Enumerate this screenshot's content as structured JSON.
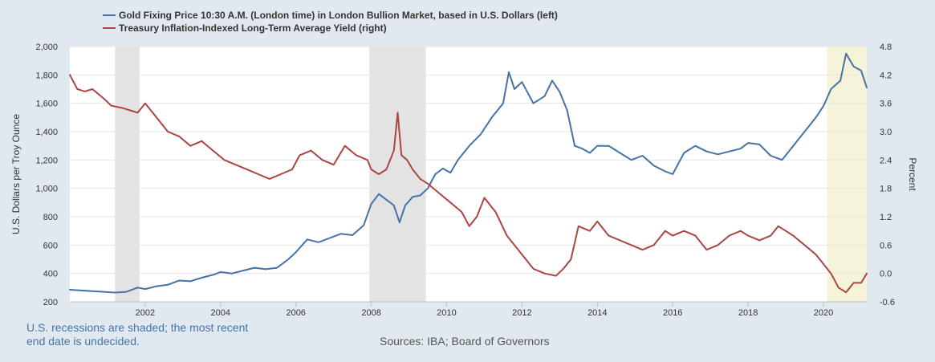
{
  "chart_data": {
    "type": "line",
    "series": [
      {
        "name": "Gold Fixing Price 10:30 A.M. (London time) in London Bullion Market, based in U.S. Dollars (left)",
        "axis": "left",
        "color": "#4572a7",
        "x": [
          2000.0,
          2000.3,
          2000.6,
          2000.9,
          2001.2,
          2001.5,
          2001.8,
          2002.0,
          2002.3,
          2002.6,
          2002.9,
          2003.2,
          2003.5,
          2003.8,
          2004.0,
          2004.3,
          2004.6,
          2004.9,
          2005.2,
          2005.5,
          2005.8,
          2006.0,
          2006.3,
          2006.6,
          2006.9,
          2007.2,
          2007.5,
          2007.8,
          2008.0,
          2008.2,
          2008.4,
          2008.6,
          2008.75,
          2008.9,
          2009.1,
          2009.3,
          2009.5,
          2009.7,
          2009.9,
          2010.1,
          2010.3,
          2010.6,
          2010.9,
          2011.2,
          2011.5,
          2011.65,
          2011.8,
          2012.0,
          2012.3,
          2012.6,
          2012.8,
          2013.0,
          2013.2,
          2013.4,
          2013.6,
          2013.8,
          2014.0,
          2014.3,
          2014.6,
          2014.9,
          2015.2,
          2015.5,
          2015.8,
          2016.0,
          2016.3,
          2016.6,
          2016.9,
          2017.2,
          2017.5,
          2017.8,
          2018.0,
          2018.3,
          2018.6,
          2018.9,
          2019.2,
          2019.5,
          2019.8,
          2020.0,
          2020.2,
          2020.45,
          2020.6,
          2020.8,
          2021.0,
          2021.15
        ],
        "values": [
          285,
          280,
          275,
          270,
          265,
          270,
          300,
          290,
          310,
          320,
          350,
          345,
          370,
          390,
          410,
          400,
          420,
          440,
          430,
          440,
          500,
          550,
          640,
          620,
          650,
          680,
          670,
          740,
          890,
          960,
          920,
          880,
          760,
          880,
          940,
          950,
          1000,
          1100,
          1140,
          1110,
          1200,
          1300,
          1380,
          1500,
          1600,
          1820,
          1700,
          1750,
          1600,
          1650,
          1760,
          1680,
          1550,
          1300,
          1280,
          1250,
          1300,
          1300,
          1250,
          1200,
          1230,
          1160,
          1120,
          1100,
          1250,
          1300,
          1260,
          1240,
          1260,
          1280,
          1320,
          1310,
          1230,
          1200,
          1300,
          1400,
          1500,
          1580,
          1700,
          1760,
          1950,
          1860,
          1830,
          1710
        ]
      },
      {
        "name": "Treasury Inflation-Indexed Long-Term Average Yield (right)",
        "axis": "right",
        "color": "#aa4643",
        "x": [
          2000.0,
          2000.2,
          2000.4,
          2000.6,
          2000.9,
          2001.1,
          2001.4,
          2001.6,
          2001.8,
          2002.0,
          2002.3,
          2002.6,
          2002.9,
          2003.2,
          2003.5,
          2003.8,
          2004.1,
          2004.4,
          2004.7,
          2005.0,
          2005.3,
          2005.6,
          2005.9,
          2006.1,
          2006.4,
          2006.7,
          2007.0,
          2007.3,
          2007.6,
          2007.9,
          2008.0,
          2008.2,
          2008.4,
          2008.6,
          2008.7,
          2008.8,
          2008.95,
          2009.1,
          2009.3,
          2009.5,
          2009.8,
          2010.1,
          2010.4,
          2010.6,
          2010.8,
          2011.0,
          2011.3,
          2011.6,
          2011.9,
          2012.1,
          2012.3,
          2012.6,
          2012.9,
          2013.1,
          2013.3,
          2013.5,
          2013.8,
          2014.0,
          2014.3,
          2014.6,
          2014.9,
          2015.2,
          2015.5,
          2015.8,
          2016.0,
          2016.3,
          2016.6,
          2016.9,
          2017.2,
          2017.5,
          2017.8,
          2018.0,
          2018.3,
          2018.6,
          2018.8,
          2019.0,
          2019.2,
          2019.5,
          2019.8,
          2020.0,
          2020.2,
          2020.4,
          2020.6,
          2020.8,
          2021.0,
          2021.15
        ],
        "values": [
          4.2,
          3.9,
          3.85,
          3.9,
          3.7,
          3.55,
          3.5,
          3.45,
          3.4,
          3.6,
          3.3,
          3.0,
          2.9,
          2.7,
          2.8,
          2.6,
          2.4,
          2.3,
          2.2,
          2.1,
          2.0,
          2.1,
          2.2,
          2.5,
          2.6,
          2.4,
          2.3,
          2.7,
          2.5,
          2.4,
          2.2,
          2.1,
          2.2,
          2.6,
          3.4,
          2.5,
          2.4,
          2.2,
          2.0,
          1.9,
          1.7,
          1.5,
          1.3,
          1.0,
          1.2,
          1.6,
          1.3,
          0.8,
          0.5,
          0.3,
          0.1,
          0.0,
          -0.05,
          0.1,
          0.3,
          1.0,
          0.9,
          1.1,
          0.8,
          0.7,
          0.6,
          0.5,
          0.6,
          0.9,
          0.8,
          0.9,
          0.8,
          0.5,
          0.6,
          0.8,
          0.9,
          0.8,
          0.7,
          0.8,
          1.0,
          0.9,
          0.8,
          0.6,
          0.4,
          0.2,
          0.0,
          -0.3,
          -0.4,
          -0.2,
          -0.2,
          0.0
        ]
      }
    ],
    "recessions": [
      [
        2001.2,
        2001.85
      ],
      [
        2007.95,
        2009.45
      ],
      [
        2020.1,
        2021.15
      ]
    ],
    "recession_colors": [
      "#e3e3e3",
      "#e3e3e3",
      "#f5f3d8"
    ],
    "xlim": [
      2000.0,
      2021.15
    ],
    "x_ticks": [
      2002,
      2004,
      2006,
      2008,
      2010,
      2012,
      2014,
      2016,
      2018,
      2020
    ],
    "y_left": {
      "label": "U.S. Dollars per Troy Ounce",
      "range": [
        200,
        2000
      ],
      "ticks": [
        200,
        400,
        600,
        800,
        1000,
        1200,
        1400,
        1600,
        1800,
        2000
      ],
      "tick_labels": [
        "200",
        "400",
        "600",
        "800",
        "1,000",
        "1,200",
        "1,400",
        "1,600",
        "1,800",
        "2,000"
      ]
    },
    "y_right": {
      "label": "Percent",
      "range": [
        -0.6,
        4.8
      ],
      "ticks": [
        -0.6,
        0.0,
        0.6,
        1.2,
        1.8,
        2.4,
        3.0,
        3.6,
        4.2,
        4.8
      ],
      "tick_labels": [
        "-0.6",
        "0.0",
        "0.6",
        "1.2",
        "1.8",
        "2.4",
        "3.0",
        "3.6",
        "4.2",
        "4.8"
      ]
    },
    "grid": true,
    "legend_placement": "top-left"
  },
  "footnote": "U.S. recessions are shaded; the most recent end date is undecided.",
  "source": "Sources: IBA; Board of Governors"
}
